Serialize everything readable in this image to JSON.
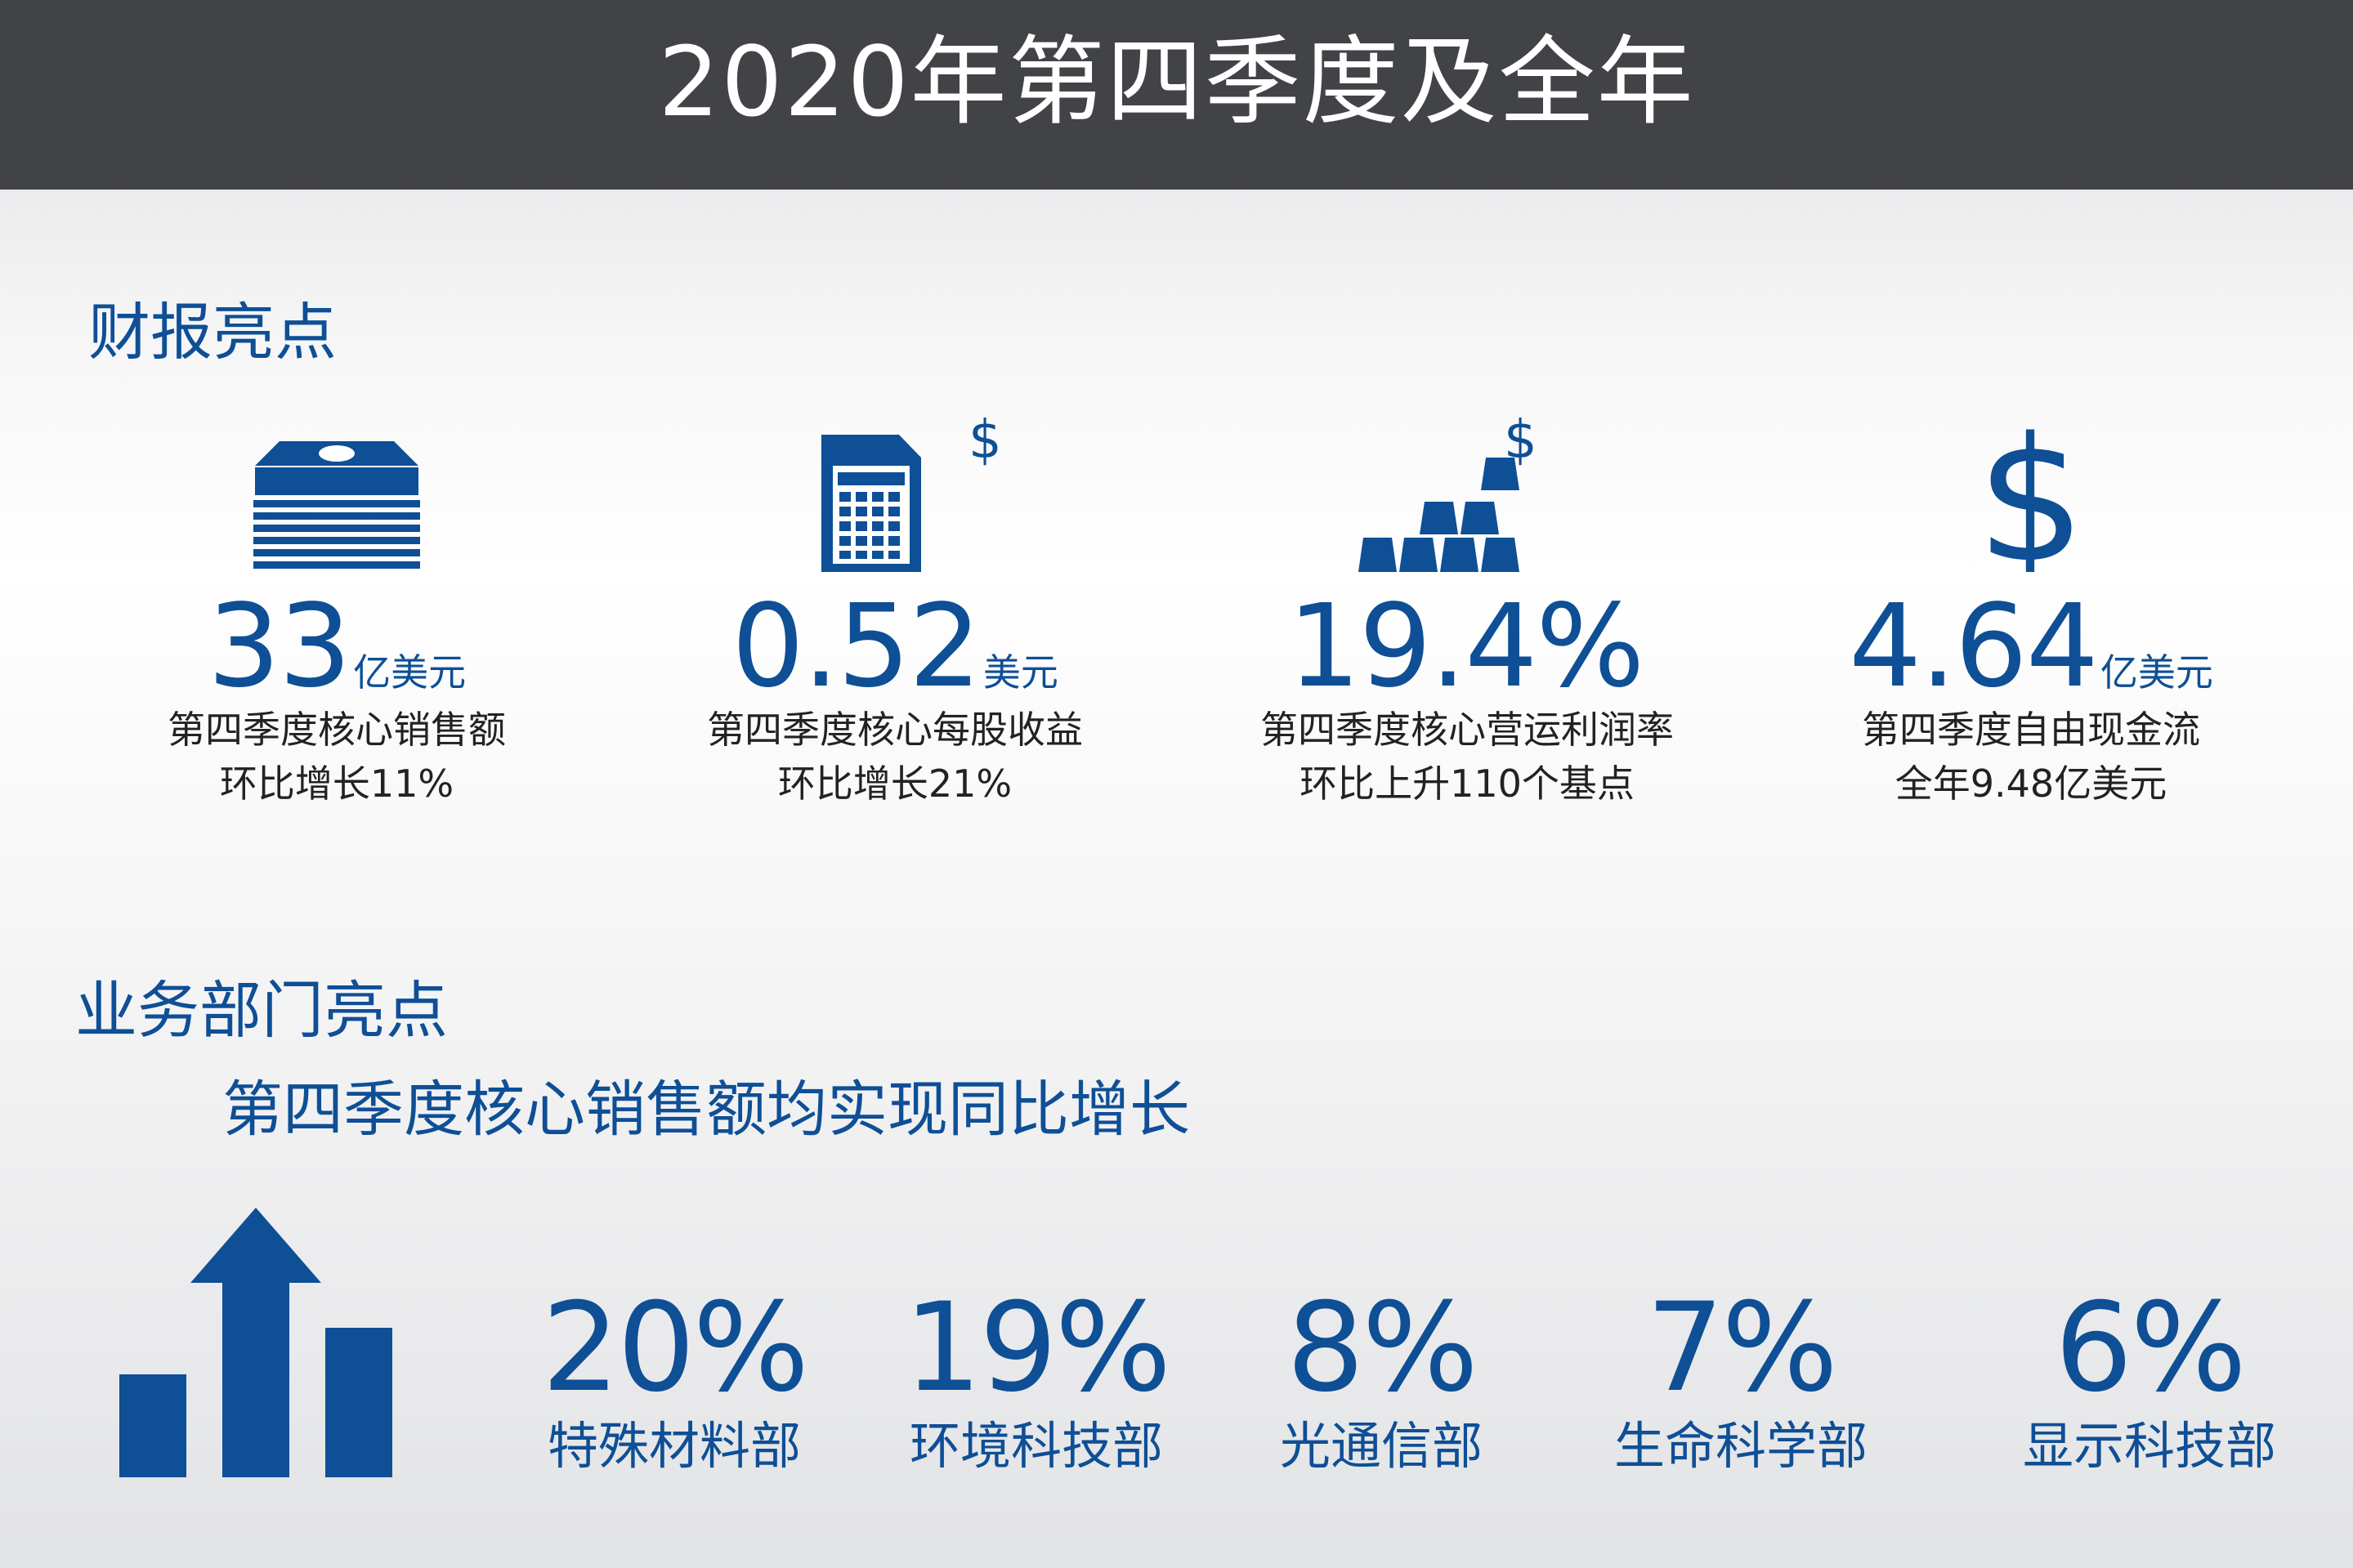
{
  "header": {
    "title": "2020年第四季度及全年"
  },
  "financial": {
    "heading": "财报亮点",
    "metrics": [
      {
        "icon": "money-stack-icon",
        "value": "33",
        "unit": "亿美元",
        "line1": "第四季度核心销售额",
        "line2": "环比增长11%"
      },
      {
        "icon": "calculator-dollar-icon",
        "value": "0.52",
        "unit": "美元",
        "line1": "第四季度核心每股收益",
        "line2": "环比增长21%"
      },
      {
        "icon": "gold-bars-dollar-icon",
        "value": "19.4%",
        "unit": "",
        "line1": "第四季度核心营运利润率",
        "line2": "环比上升110个基点"
      },
      {
        "icon": "dollar-sign-icon",
        "value": "4.64",
        "unit": "亿美元",
        "line1": "第四季度自由现金流",
        "line2": "全年9.48亿美元"
      }
    ]
  },
  "business": {
    "heading": "业务部门亮点",
    "subheading": "第四季度核心销售额均实现同比增长",
    "departments": [
      {
        "pct": "20%",
        "name": "特殊材料部"
      },
      {
        "pct": "19%",
        "name": "环境科技部"
      },
      {
        "pct": "8%",
        "name": "光通信部"
      },
      {
        "pct": "7%",
        "name": "生命科学部"
      },
      {
        "pct": "6%",
        "name": "显示科技部"
      }
    ]
  },
  "colors": {
    "header_bg": "#424346",
    "accent": "#0e4f96",
    "text": "#222222"
  }
}
